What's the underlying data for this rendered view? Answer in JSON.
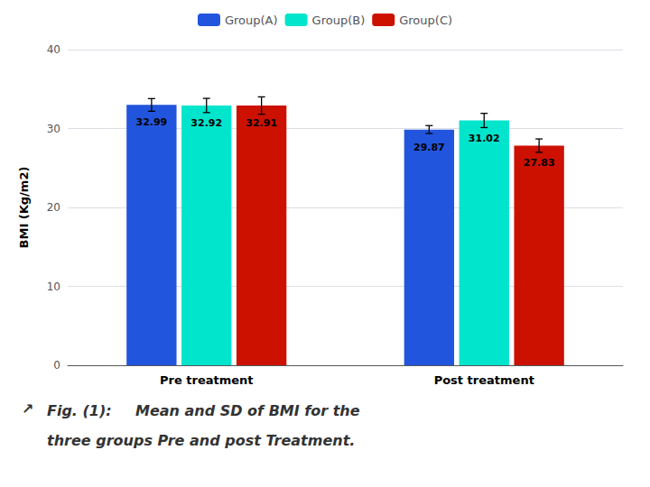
{
  "chart_data": {
    "type": "bar",
    "ylabel": "BMI (Kg/m2)",
    "categories": [
      "Pre treatment",
      "Post treatment"
    ],
    "series": [
      {
        "name": "Group(A)",
        "color": "#2255dd",
        "values": [
          32.99,
          29.87
        ],
        "errors": [
          0.8,
          0.5
        ]
      },
      {
        "name": "Group(B)",
        "color": "#00e5cc",
        "values": [
          32.92,
          31.02
        ],
        "errors": [
          0.9,
          0.9
        ]
      },
      {
        "name": "Group(C)",
        "color": "#cc1100",
        "values": [
          32.91,
          27.83
        ],
        "errors": [
          1.1,
          0.85
        ]
      }
    ],
    "ylim": [
      0,
      40
    ],
    "yticks": [
      0,
      10,
      20,
      30,
      40
    ],
    "grid": true,
    "legend": "top",
    "data_labels": true,
    "annotations": [
      "↗",
      "Fig. (1):",
      "Mean and SD of BMI for the",
      "three groups Pre and post Treatment."
    ]
  }
}
